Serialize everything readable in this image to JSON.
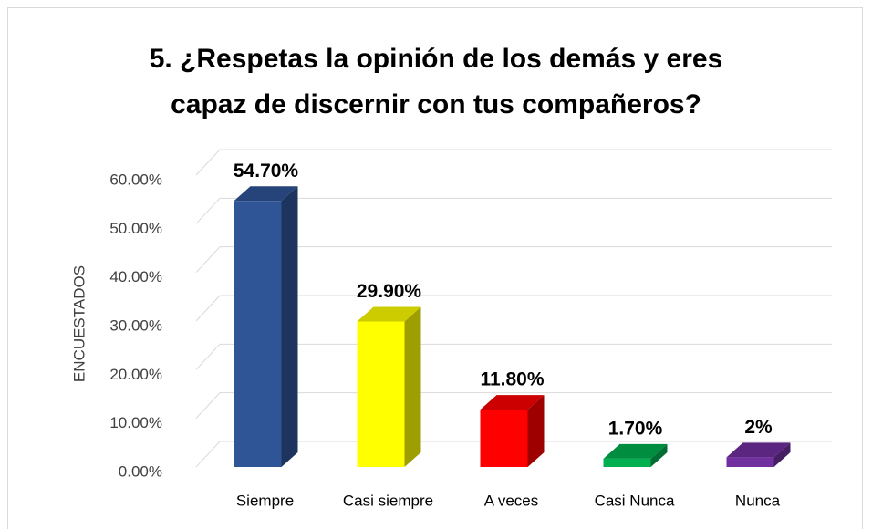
{
  "chart_data": {
    "type": "bar3d",
    "title": "5. ¿Respetas la opinión de los demás y eres capaz de discernir con tus compañeros?",
    "y_label": "ENCUESTADOS",
    "categories": [
      "Siempre",
      "Casi siempre",
      "A veces",
      "Casi Nunca",
      "Nunca"
    ],
    "values": [
      54.7,
      29.9,
      11.8,
      1.7,
      2
    ],
    "value_labels": [
      "54.70%",
      "29.90%",
      "11.80%",
      "1.70%",
      "2%"
    ],
    "colors": [
      "#2f5597",
      "#ffff00",
      "#ff0000",
      "#00b050",
      "#7030a0"
    ],
    "ylim": [
      0,
      60
    ],
    "yticks": [
      {
        "value": 0,
        "label": "0.00%"
      },
      {
        "value": 10,
        "label": "10.00%"
      },
      {
        "value": 20,
        "label": "20.00%"
      },
      {
        "value": 30,
        "label": "30.00%"
      },
      {
        "value": 40,
        "label": "40.00%"
      },
      {
        "value": 50,
        "label": "50.00%"
      },
      {
        "value": 60,
        "label": "60.00%"
      }
    ],
    "grid": true
  }
}
